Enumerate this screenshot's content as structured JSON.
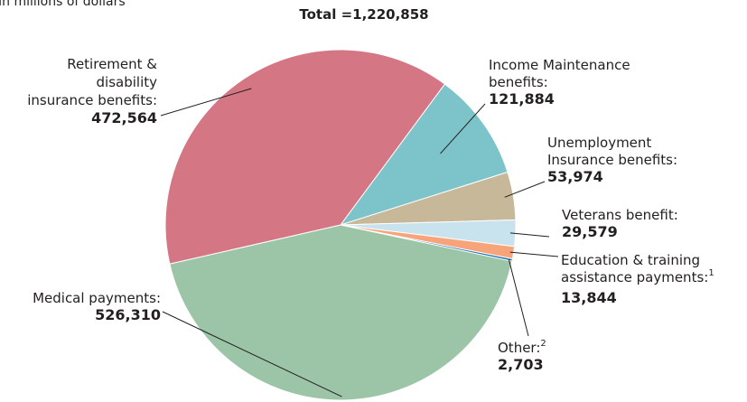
{
  "chart_data": {
    "type": "pie",
    "units_note": "In millions of dollars",
    "total_label": "Total =1,220,858",
    "total": 1220858,
    "slices": [
      {
        "lines": [
          "Income Maintenance",
          "benefits:"
        ],
        "value": 121884,
        "value_label": "121,884",
        "color": "#7cc4ca"
      },
      {
        "lines": [
          "Unemployment",
          "Insurance benefits:"
        ],
        "value": 53974,
        "value_label": "53,974",
        "color": "#c8b89a"
      },
      {
        "lines": [
          "Veterans benefit:"
        ],
        "value": 29579,
        "value_label": "29,579",
        "color": "#c8e2ee"
      },
      {
        "lines": [
          "Education & training",
          "assistance payments:"
        ],
        "sup": "1",
        "value": 13844,
        "value_label": "13,844",
        "color": "#f7a47a"
      },
      {
        "lines": [
          "Other:"
        ],
        "sup": "2",
        "value": 2703,
        "value_label": "2,703",
        "color": "#1f73b5"
      },
      {
        "lines": [
          "Medical payments:"
        ],
        "value": 526310,
        "value_label": "526,310",
        "color": "#9cc5a7"
      },
      {
        "lines": [
          "Retirement &",
          "disability",
          "insurance benefits:"
        ],
        "value": 472564,
        "value_label": "472,564",
        "color": "#d47684"
      }
    ]
  }
}
